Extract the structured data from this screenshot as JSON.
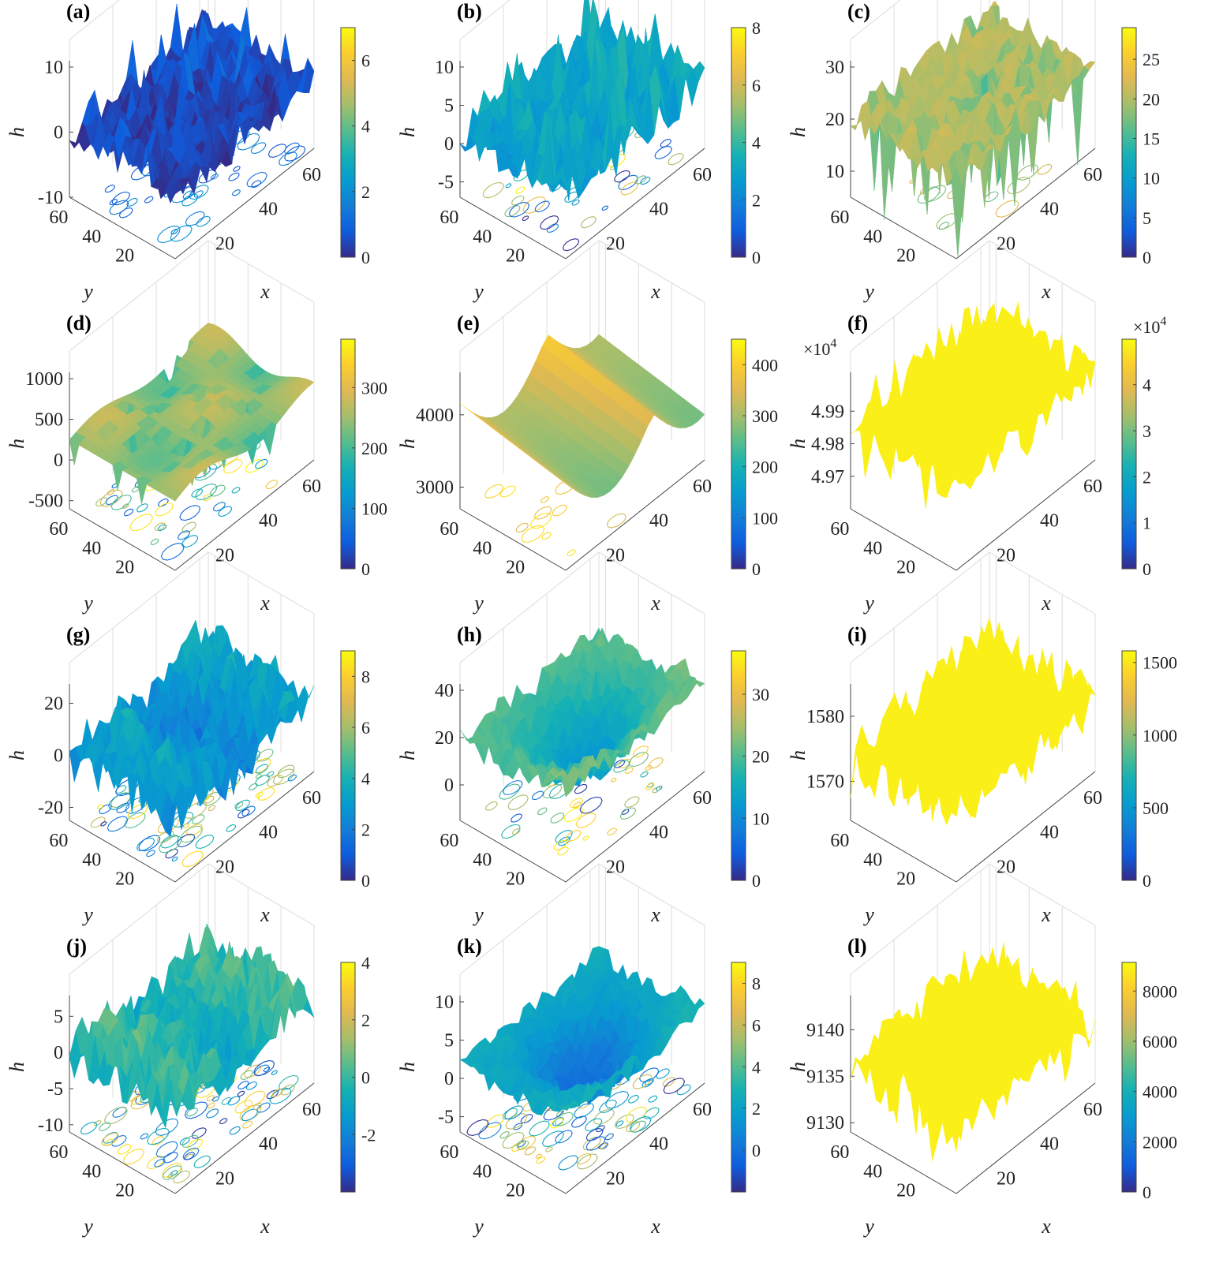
{
  "chart_data": [
    {
      "id": "a",
      "label": "(a)",
      "type": "surface",
      "xlabel": "x",
      "ylabel": "y",
      "zlabel": "h",
      "x_ticks": [
        "20",
        "40",
        "60"
      ],
      "y_ticks": [
        "20",
        "40",
        "60"
      ],
      "z_ticks": [
        "-10",
        "0",
        "10"
      ],
      "zlim": [
        -10,
        10
      ],
      "z_exponent": "",
      "colorbar": {
        "ticks": [
          "0",
          "2",
          "4",
          "6"
        ],
        "range": [
          0,
          7
        ],
        "exponent": ""
      },
      "surface": {
        "min": -7,
        "max": 7,
        "mean": 0,
        "style": "spiky",
        "color_level": 0.05,
        "spike": "yellow"
      },
      "contour": {
        "colors": "mostly blue"
      }
    },
    {
      "id": "b",
      "label": "(b)",
      "type": "surface",
      "xlabel": "x",
      "ylabel": "y",
      "zlabel": "h",
      "x_ticks": [
        "20",
        "40",
        "60"
      ],
      "y_ticks": [
        "20",
        "40",
        "60"
      ],
      "z_ticks": [
        "-5",
        "0",
        "5",
        "10"
      ],
      "zlim": [
        -7,
        10
      ],
      "z_exponent": "",
      "colorbar": {
        "ticks": [
          "0",
          "2",
          "4",
          "6",
          "8"
        ],
        "range": [
          0,
          8
        ],
        "exponent": ""
      },
      "surface": {
        "min": -7,
        "max": 10,
        "mean": 1.5,
        "style": "spiky",
        "color_level": 0.35
      },
      "contour": {
        "colors": "mixed"
      }
    },
    {
      "id": "c",
      "label": "(c)",
      "type": "surface",
      "xlabel": "x",
      "ylabel": "y",
      "zlabel": "h",
      "x_ticks": [
        "20",
        "40",
        "60"
      ],
      "y_ticks": [
        "20",
        "40",
        "60"
      ],
      "z_ticks": [
        "10",
        "20",
        "30"
      ],
      "zlim": [
        5,
        30
      ],
      "z_exponent": "",
      "colorbar": {
        "ticks": [
          "0",
          "5",
          "10",
          "15",
          "20",
          "25"
        ],
        "range": [
          0,
          29
        ],
        "exponent": ""
      },
      "surface": {
        "min": 2,
        "max": 28,
        "mean": 20,
        "style": "dips",
        "color_level": 0.7
      },
      "contour": {
        "colors": "sparse green"
      }
    },
    {
      "id": "d",
      "label": "(d)",
      "type": "surface",
      "xlabel": "x",
      "ylabel": "y",
      "zlabel": "h",
      "x_ticks": [
        "20",
        "40",
        "60"
      ],
      "y_ticks": [
        "20",
        "40",
        "60"
      ],
      "z_ticks": [
        "-500",
        "0",
        "500",
        "1000"
      ],
      "zlim": [
        -600,
        1000
      ],
      "z_exponent": "",
      "colorbar": {
        "ticks": [
          "0",
          "100",
          "200",
          "300"
        ],
        "range": [
          0,
          380
        ],
        "exponent": ""
      },
      "surface": {
        "min": -300,
        "max": 400,
        "mean": 250,
        "style": "bumpy",
        "color_level": 0.65
      },
      "contour": {
        "colors": "mixed"
      }
    },
    {
      "id": "e",
      "label": "(e)",
      "type": "surface",
      "xlabel": "x",
      "ylabel": "y",
      "zlabel": "h",
      "x_ticks": [
        "20",
        "40",
        "60"
      ],
      "y_ticks": [
        "20",
        "40",
        "60"
      ],
      "z_ticks": [
        "3000",
        "4000"
      ],
      "zlim": [
        2700,
        4500
      ],
      "z_exponent": "",
      "colorbar": {
        "ticks": [
          "0",
          "100",
          "200",
          "300",
          "400"
        ],
        "range": [
          0,
          450
        ],
        "exponent": ""
      },
      "surface": {
        "min": 2900,
        "max": 4600,
        "mean": 3900,
        "style": "arches",
        "color_level": 0.8
      },
      "contour": {
        "colors": "sparse yellow"
      }
    },
    {
      "id": "f",
      "label": "(f)",
      "type": "surface",
      "xlabel": "x",
      "ylabel": "y",
      "zlabel": "h",
      "x_ticks": [
        "20",
        "40",
        "60"
      ],
      "y_ticks": [
        "20",
        "40",
        "60"
      ],
      "z_ticks": [
        "4.97",
        "4.98",
        "4.99"
      ],
      "zlim": [
        4.96,
        5.0
      ],
      "z_exponent": "4",
      "colorbar": {
        "ticks": [
          "0",
          "1",
          "2",
          "3",
          "4"
        ],
        "range": [
          0,
          4.99
        ],
        "exponent": "4"
      },
      "surface": {
        "min": 4.962,
        "max": 4.995,
        "mean": 4.987,
        "style": "flat-yellow",
        "color_level": 1.0
      },
      "contour": {
        "colors": "none"
      }
    },
    {
      "id": "g",
      "label": "(g)",
      "type": "surface",
      "xlabel": "x",
      "ylabel": "y",
      "zlabel": "h",
      "x_ticks": [
        "20",
        "40",
        "60"
      ],
      "y_ticks": [
        "20",
        "40",
        "60"
      ],
      "z_ticks": [
        "-20",
        "0",
        "20"
      ],
      "zlim": [
        -25,
        25
      ],
      "z_exponent": "",
      "colorbar": {
        "ticks": [
          "0",
          "2",
          "4",
          "6",
          "8"
        ],
        "range": [
          0,
          9
        ],
        "exponent": ""
      },
      "surface": {
        "min": -20,
        "max": 22,
        "mean": 0,
        "style": "rough",
        "color_level": 0.3
      },
      "contour": {
        "colors": "mixed dense"
      }
    },
    {
      "id": "h",
      "label": "(h)",
      "type": "surface",
      "xlabel": "x",
      "ylabel": "y",
      "zlabel": "h",
      "x_ticks": [
        "20",
        "40",
        "60"
      ],
      "y_ticks": [
        "20",
        "40",
        "60"
      ],
      "z_ticks": [
        "0",
        "20",
        "40"
      ],
      "zlim": [
        -15,
        40
      ],
      "z_exponent": "",
      "colorbar": {
        "ticks": [
          "0",
          "10",
          "20",
          "30"
        ],
        "range": [
          0,
          37
        ],
        "exponent": ""
      },
      "surface": {
        "min": -15,
        "max": 40,
        "mean": 20,
        "style": "valley",
        "color_level": 0.55
      },
      "contour": {
        "colors": "mixed"
      }
    },
    {
      "id": "i",
      "label": "(i)",
      "type": "surface",
      "xlabel": "x",
      "ylabel": "y",
      "zlabel": "h",
      "x_ticks": [
        "20",
        "40",
        "60"
      ],
      "y_ticks": [
        "20",
        "40",
        "60"
      ],
      "z_ticks": [
        "1570",
        "1580"
      ],
      "zlim": [
        1564,
        1584
      ],
      "z_exponent": "",
      "colorbar": {
        "ticks": [
          "0",
          "500",
          "1000",
          "1500"
        ],
        "range": [
          0,
          1580
        ],
        "exponent": ""
      },
      "surface": {
        "min": 1566,
        "max": 1582,
        "mean": 1575,
        "style": "flat-yellow",
        "color_level": 1.0
      },
      "contour": {
        "colors": "none"
      }
    },
    {
      "id": "j",
      "label": "(j)",
      "type": "surface",
      "xlabel": "x",
      "ylabel": "y",
      "zlabel": "h",
      "x_ticks": [
        "20",
        "40",
        "60"
      ],
      "y_ticks": [
        "20",
        "40",
        "60"
      ],
      "z_ticks": [
        "-10",
        "-5",
        "0",
        "5"
      ],
      "zlim": [
        -11,
        7
      ],
      "z_exponent": "",
      "colorbar": {
        "ticks": [
          "-2",
          "0",
          "2",
          "4"
        ],
        "range": [
          -4,
          4
        ],
        "exponent": ""
      },
      "surface": {
        "min": -8,
        "max": 6,
        "mean": 0,
        "style": "rough",
        "color_level": 0.45
      },
      "contour": {
        "colors": "mixed dense"
      }
    },
    {
      "id": "k",
      "label": "(k)",
      "type": "surface",
      "xlabel": "x",
      "ylabel": "y",
      "zlabel": "h",
      "x_ticks": [
        "20",
        "40",
        "60"
      ],
      "y_ticks": [
        "20",
        "40",
        "60"
      ],
      "z_ticks": [
        "-5",
        "0",
        "5",
        "10"
      ],
      "zlim": [
        -7,
        10
      ],
      "z_exponent": "",
      "colorbar": {
        "ticks": [
          "0",
          "2",
          "4",
          "6",
          "8"
        ],
        "range": [
          -2,
          9
        ],
        "exponent": ""
      },
      "surface": {
        "min": -7,
        "max": 8,
        "mean": 2,
        "style": "valley",
        "color_level": 0.4
      },
      "contour": {
        "colors": "mixed dense"
      }
    },
    {
      "id": "l",
      "label": "(l)",
      "type": "surface",
      "xlabel": "x",
      "ylabel": "y",
      "zlabel": "h",
      "x_ticks": [
        "20",
        "40",
        "60"
      ],
      "y_ticks": [
        "20",
        "40",
        "60"
      ],
      "z_ticks": [
        "9130",
        "9135",
        "9140"
      ],
      "zlim": [
        9129,
        9143
      ],
      "z_exponent": "",
      "colorbar": {
        "ticks": [
          "0",
          "2000",
          "4000",
          "6000",
          "8000"
        ],
        "range": [
          0,
          9140
        ],
        "exponent": ""
      },
      "surface": {
        "min": 9131,
        "max": 9143,
        "mean": 9136,
        "style": "flat-yellow",
        "color_level": 1.0
      },
      "contour": {
        "colors": "none"
      }
    }
  ]
}
